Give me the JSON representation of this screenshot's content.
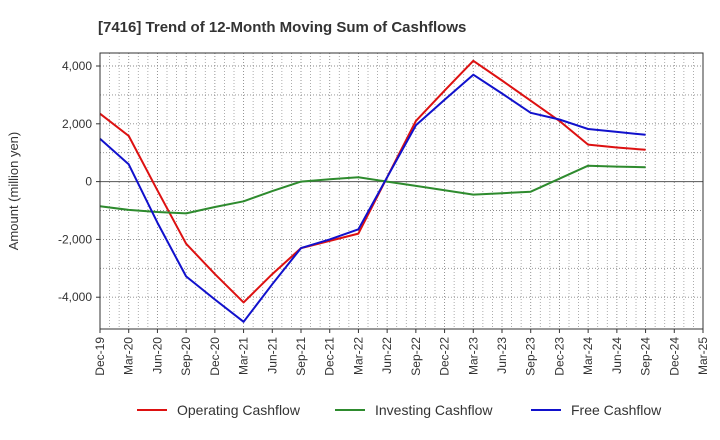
{
  "chart_data": {
    "type": "line",
    "title": "[7416]  Trend of 12-Month Moving Sum of Cashflows",
    "xlabel": "",
    "ylabel": "Amount (million yen)",
    "categories": [
      "Dec-19",
      "Mar-20",
      "Jun-20",
      "Sep-20",
      "Dec-20",
      "Mar-21",
      "Jun-21",
      "Sep-21",
      "Dec-21",
      "Mar-22",
      "Jun-22",
      "Sep-22",
      "Dec-22",
      "Mar-23",
      "Jun-23",
      "Sep-23",
      "Dec-23",
      "Mar-24",
      "Jun-24",
      "Sep-24",
      "Dec-24",
      "Mar-25"
    ],
    "ylim": [
      -5100,
      4450
    ],
    "yticks": [
      -4000,
      -2000,
      0,
      2000,
      4000
    ],
    "ytick_labels": [
      "-4,000",
      "-2,000",
      "0",
      "2,000",
      "4,000"
    ],
    "grid": true,
    "legend_position": "bottom",
    "series": [
      {
        "name": "Operating Cashflow",
        "color": "#dd1111",
        "values": [
          2350,
          1580,
          -300,
          -2150,
          -3200,
          -4180,
          -3200,
          -2300,
          -2050,
          -1800,
          150,
          2100,
          3150,
          4180,
          3500,
          2800,
          2100,
          1280,
          1180,
          1100,
          null,
          null
        ]
      },
      {
        "name": "Investing Cashflow",
        "color": "#2e8b2e",
        "values": [
          -850,
          -980,
          -1050,
          -1100,
          -880,
          -680,
          -330,
          0,
          80,
          150,
          0,
          -150,
          -300,
          -450,
          -400,
          -350,
          100,
          550,
          520,
          500,
          null,
          null
        ]
      },
      {
        "name": "Free Cashflow",
        "color": "#1111cc",
        "values": [
          1480,
          600,
          -1420,
          -3280,
          -4080,
          -4850,
          -3550,
          -2300,
          -2000,
          -1650,
          150,
          1950,
          2830,
          3700,
          3050,
          2380,
          2150,
          1820,
          1720,
          1620,
          null,
          null
        ]
      }
    ]
  }
}
